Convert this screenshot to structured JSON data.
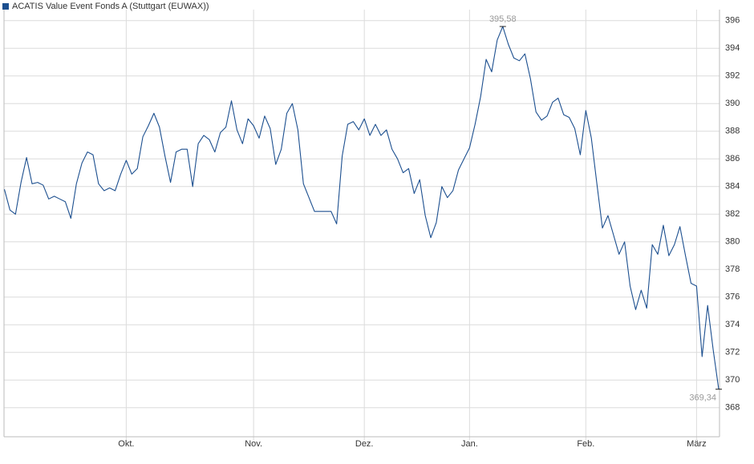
{
  "chart_data": {
    "type": "line",
    "legend": "top-left",
    "grid": true,
    "ylim": [
      365.9,
      396.8
    ],
    "yticks": [
      368,
      370,
      372,
      374,
      376,
      378,
      380,
      382,
      384,
      386,
      388,
      390,
      392,
      394,
      396
    ],
    "categories": [
      null,
      null,
      null,
      null,
      null,
      null,
      null,
      null,
      null,
      null,
      null,
      null,
      null,
      null,
      null,
      null,
      null,
      null,
      null,
      null,
      null,
      null,
      "Okt.",
      null,
      null,
      null,
      null,
      null,
      null,
      null,
      null,
      null,
      null,
      null,
      null,
      null,
      null,
      null,
      null,
      null,
      null,
      null,
      null,
      null,
      null,
      "Nov.",
      null,
      null,
      null,
      null,
      null,
      null,
      null,
      null,
      null,
      null,
      null,
      null,
      null,
      null,
      null,
      null,
      null,
      null,
      null,
      "Dez.",
      null,
      null,
      null,
      null,
      null,
      null,
      null,
      null,
      null,
      null,
      null,
      null,
      null,
      null,
      null,
      null,
      null,
      null,
      "Jan.",
      null,
      null,
      null,
      null,
      null,
      null,
      null,
      null,
      null,
      null,
      null,
      null,
      null,
      null,
      null,
      null,
      null,
      null,
      null,
      null,
      "Feb.",
      null,
      null,
      null,
      null,
      null,
      null,
      null,
      null,
      null,
      null,
      null,
      null,
      null,
      null,
      null,
      null,
      null,
      null,
      null,
      "März",
      null,
      null,
      null,
      null
    ],
    "series": [
      {
        "name": "ACATIS Value Event Fonds A (Stuttgart (EUWAX))",
        "color": "#1c4f8f",
        "values": [
          383.8,
          382.3,
          382.0,
          384.3,
          386.1,
          384.2,
          384.3,
          384.1,
          383.1,
          383.3,
          383.1,
          382.9,
          381.7,
          384.2,
          385.7,
          386.5,
          386.3,
          384.2,
          383.7,
          383.9,
          383.7,
          384.9,
          385.9,
          384.9,
          385.3,
          387.6,
          388.4,
          389.3,
          388.3,
          386.2,
          384.3,
          386.5,
          386.7,
          386.7,
          384.0,
          387.1,
          387.7,
          387.4,
          386.5,
          387.9,
          388.3,
          390.2,
          388.1,
          387.1,
          388.9,
          388.4,
          387.5,
          389.1,
          388.2,
          385.6,
          386.7,
          389.3,
          390.0,
          388.1,
          384.2,
          383.2,
          382.2,
          382.2,
          382.2,
          382.2,
          381.3,
          386.2,
          388.5,
          388.7,
          388.1,
          388.9,
          387.7,
          388.5,
          387.7,
          388.1,
          386.7,
          386.0,
          385.0,
          385.3,
          383.5,
          384.5,
          381.9,
          380.3,
          381.4,
          384.0,
          383.2,
          383.7,
          385.2,
          386.0,
          386.8,
          388.5,
          390.5,
          393.2,
          392.3,
          394.6,
          395.58,
          394.3,
          393.3,
          393.1,
          393.6,
          391.8,
          389.4,
          388.8,
          389.1,
          390.1,
          390.4,
          389.2,
          389.0,
          388.2,
          386.3,
          389.5,
          387.5,
          384.2,
          381.0,
          381.9,
          380.5,
          379.1,
          380.0,
          376.8,
          375.1,
          376.5,
          375.2,
          379.8,
          379.1,
          381.2,
          379.0,
          379.8,
          381.1,
          379.0,
          377.0,
          376.8,
          371.7,
          375.4,
          372.2,
          369.34
        ],
        "value_labels": [
          null,
          null,
          null,
          null,
          null,
          null,
          null,
          null,
          null,
          null,
          null,
          null,
          null,
          null,
          null,
          null,
          null,
          null,
          null,
          null,
          null,
          null,
          null,
          null,
          null,
          null,
          null,
          null,
          null,
          null,
          null,
          null,
          null,
          null,
          null,
          null,
          null,
          null,
          null,
          null,
          null,
          null,
          null,
          null,
          null,
          null,
          null,
          null,
          null,
          null,
          null,
          null,
          null,
          null,
          null,
          null,
          null,
          null,
          null,
          null,
          null,
          null,
          null,
          null,
          null,
          null,
          null,
          null,
          null,
          null,
          null,
          null,
          null,
          null,
          null,
          null,
          null,
          null,
          null,
          null,
          null,
          null,
          null,
          null,
          null,
          null,
          null,
          null,
          null,
          null,
          "395,58",
          null,
          null,
          null,
          null,
          null,
          null,
          null,
          null,
          null,
          null,
          null,
          null,
          null,
          null,
          null,
          null,
          null,
          null,
          null,
          null,
          null,
          null,
          null,
          null,
          null,
          null,
          null,
          null,
          null,
          null,
          null,
          null,
          null,
          null,
          null,
          null,
          null,
          null,
          "369,34"
        ]
      }
    ]
  }
}
